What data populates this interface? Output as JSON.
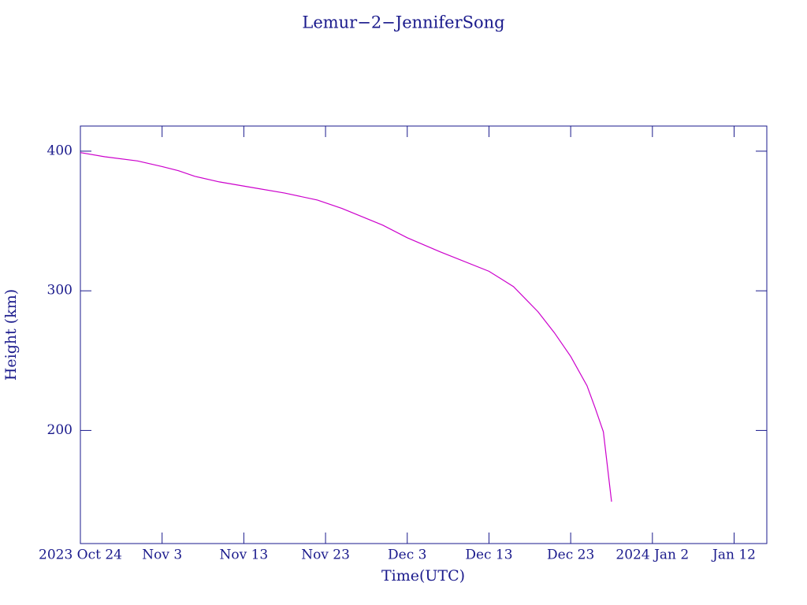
{
  "chart_data": {
    "type": "line",
    "title": "Lemur−2−JenniferSong",
    "xlabel": "Time(UTC)",
    "ylabel": "Height (km)",
    "x": [
      "2023-10-24",
      "2023-10-27",
      "2023-10-31",
      "2023-11-03",
      "2023-11-05",
      "2023-11-07",
      "2023-11-10",
      "2023-11-14",
      "2023-11-18",
      "2023-11-22",
      "2023-11-25",
      "2023-11-30",
      "2023-12-03",
      "2023-12-07",
      "2023-12-13",
      "2023-12-16",
      "2023-12-19",
      "2023-12-21",
      "2023-12-23",
      "2023-12-25",
      "2023-12-26",
      "2023-12-27",
      "2023-12-28"
    ],
    "series": [
      {
        "name": "Lemur-2-JenniferSong",
        "color": "#cc00cc",
        "values": [
          399,
          396,
          393,
          389,
          386,
          382,
          378,
          374,
          370,
          365,
          359,
          347,
          338,
          328,
          314,
          303,
          285,
          270,
          253,
          232,
          216,
          199,
          149
        ]
      }
    ],
    "xlim": [
      "2023-10-24",
      "2024-01-16"
    ],
    "xticks": [
      {
        "value": "2023-10-24",
        "label": "2023 Oct 24"
      },
      {
        "value": "2023-11-03",
        "label": "Nov 3"
      },
      {
        "value": "2023-11-13",
        "label": "Nov 13"
      },
      {
        "value": "2023-11-23",
        "label": "Nov 23"
      },
      {
        "value": "2023-12-03",
        "label": "Dec 3"
      },
      {
        "value": "2023-12-13",
        "label": "Dec 13"
      },
      {
        "value": "2023-12-23",
        "label": "Dec 23"
      },
      {
        "value": "2024-01-02",
        "label": "2024 Jan 2"
      },
      {
        "value": "2024-01-12",
        "label": "Jan 12"
      }
    ],
    "ylim": [
      119,
      418
    ],
    "yticks": [
      200,
      300,
      400
    ],
    "axis_color": "#1a1a8c"
  }
}
